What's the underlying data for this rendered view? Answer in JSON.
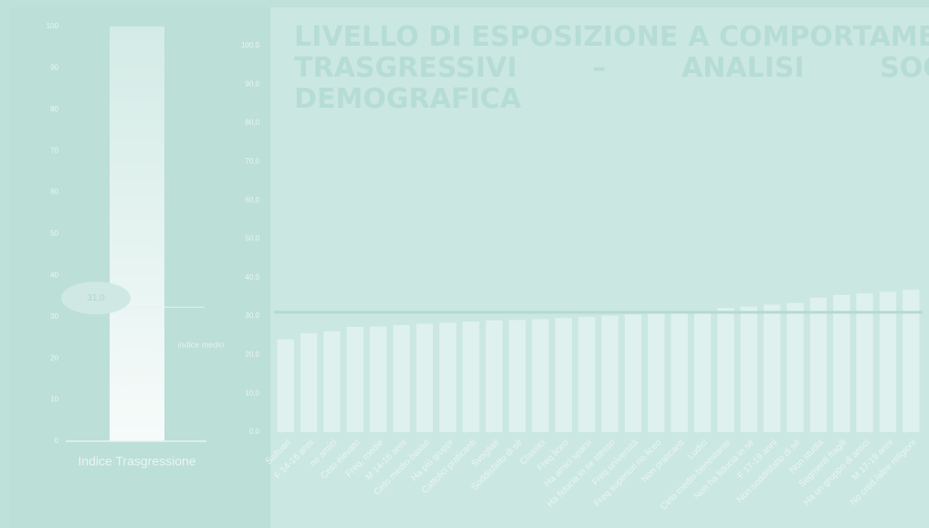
{
  "chart_data": [
    {
      "type": "gauge",
      "title": "Indice Trasgressione",
      "value": 31,
      "value_label": "31,0",
      "annotation": "indice medio",
      "ylim": [
        0,
        100
      ],
      "yticks": [
        0,
        10,
        20,
        30,
        40,
        50,
        60,
        70,
        80,
        90,
        100
      ]
    },
    {
      "type": "bar",
      "title": "LIVELLO DI ESPOSIZIONE A COMPORTAMENTI TRASGRESSIVI – ANALISI SOCIO-DEMOGRAFICA",
      "categories": [
        "Saltuari",
        "F 14-16 anni",
        "no amici",
        "Ceto elevato",
        "Freq. medie",
        "M 14-16 anni",
        "Ceto medio-basso",
        "Ha più gruppi",
        "Cattolici praticanti",
        "Svogliati",
        "Soddisfatto di sè",
        "Classici",
        "Freq liceo",
        "Ha amici sparsi",
        "Ha fiducia in se stesso",
        "Freq università",
        "Freq superiori no liceo",
        "Non praticanti",
        "Ludici",
        "Ceto medio-benestante",
        "Non ha fiducia in sè",
        "F 17-19 anni",
        "Non soddisfatto di sè",
        "Non studia",
        "Segmenti fragili",
        "Ha un gruppo di amici",
        "M 17-19 anni",
        "No cred./altre religioni"
      ],
      "values": [
        24.0,
        25.6,
        26.1,
        27.2,
        27.3,
        27.7,
        28.0,
        28.3,
        28.6,
        28.9,
        29.0,
        29.2,
        29.5,
        29.8,
        30.1,
        30.4,
        30.6,
        30.9,
        31.3,
        32.1,
        32.5,
        33.0,
        33.4,
        34.8,
        35.5,
        35.9,
        36.3,
        36.8
      ],
      "color": "#e6f4f1",
      "reference_line": 31,
      "ylim": [
        0,
        100
      ],
      "yticks": [
        {
          "value": 0,
          "label": "0,0"
        },
        {
          "value": 10,
          "label": "10,0"
        },
        {
          "value": 20,
          "label": "20,0"
        },
        {
          "value": 30,
          "label": "30,0"
        },
        {
          "value": 40,
          "label": "40,0"
        },
        {
          "value": 50,
          "label": "50,0"
        },
        {
          "value": 60,
          "label": "60,0"
        },
        {
          "value": 70,
          "label": "70,0"
        },
        {
          "value": 80,
          "label": "80,0"
        },
        {
          "value": 90,
          "label": "90,0"
        },
        {
          "value": 100,
          "label": "100,0"
        }
      ]
    }
  ]
}
